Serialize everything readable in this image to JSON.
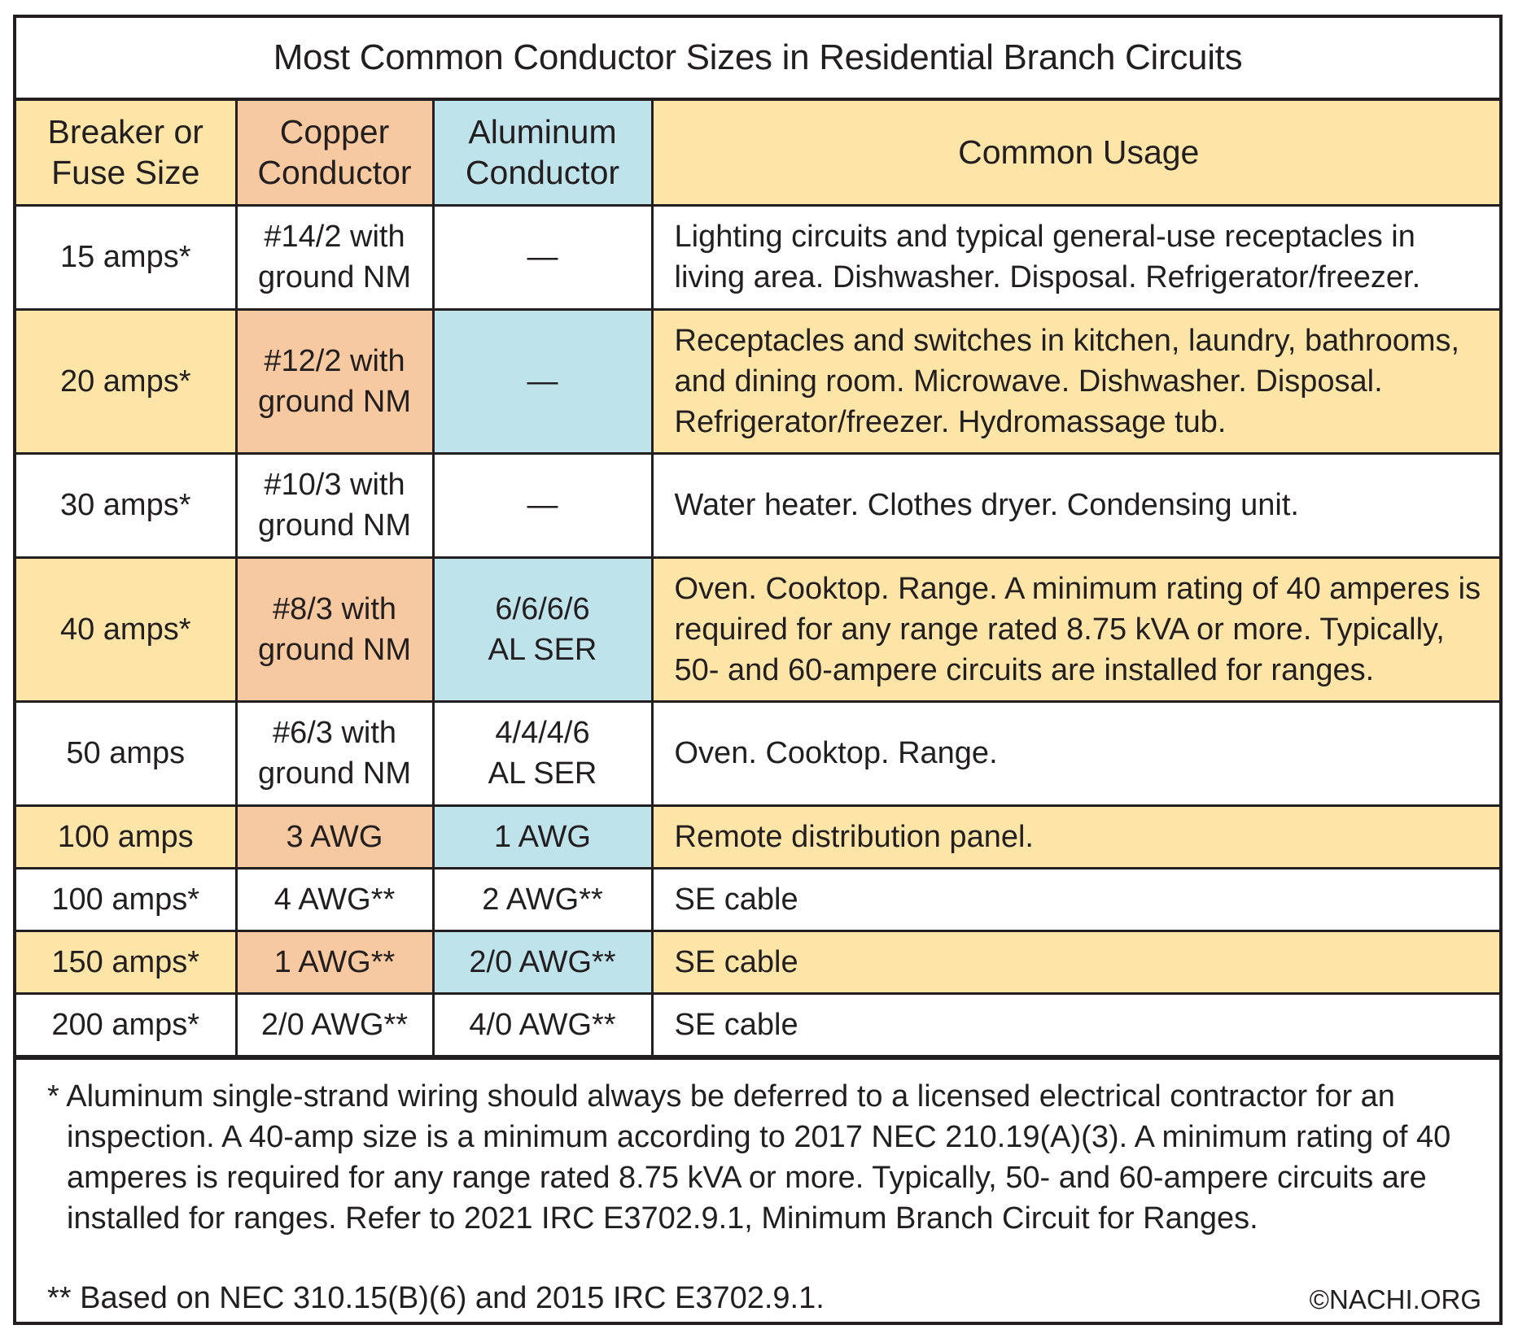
{
  "title": "Most Common Conductor Sizes in Residential Branch Circuits",
  "headers": {
    "breaker_line1": "Breaker or",
    "breaker_line2": "Fuse Size",
    "copper_line1": "Copper",
    "copper_line2": "Conductor",
    "aluminum_line1": "Aluminum",
    "aluminum_line2": "Conductor",
    "usage": "Common Usage"
  },
  "rows": [
    {
      "breaker": "15 amps*",
      "copper1": "#14/2 with",
      "copper2": "ground NM",
      "aluminum1": "—",
      "aluminum2": "",
      "usage1": "Lighting circuits and typical general-use receptacles in",
      "usage2": "living area. Dishwasher. Disposal. Refrigerator/freezer.",
      "usage3": ""
    },
    {
      "breaker": "20 amps*",
      "copper1": "#12/2 with",
      "copper2": "ground NM",
      "aluminum1": "—",
      "aluminum2": "",
      "usage1": "Receptacles and switches in kitchen, laundry, bathrooms,",
      "usage2": "and dining room. Microwave. Dishwasher. Disposal.",
      "usage3": "Refrigerator/freezer. Hydromassage tub."
    },
    {
      "breaker": "30 amps*",
      "copper1": "#10/3 with",
      "copper2": "ground NM",
      "aluminum1": "—",
      "aluminum2": "",
      "usage1": "Water heater. Clothes dryer. Condensing unit.",
      "usage2": "",
      "usage3": ""
    },
    {
      "breaker": "40 amps*",
      "copper1": "#8/3 with",
      "copper2": "ground NM",
      "aluminum1": "6/6/6/6",
      "aluminum2": "AL SER",
      "usage1": "Oven. Cooktop. Range. A minimum rating of 40 amperes is",
      "usage2": "required for any range rated 8.75 kVA or more. Typically,",
      "usage3": "50- and 60-ampere circuits are installed for ranges."
    },
    {
      "breaker": "50 amps",
      "copper1": "#6/3 with",
      "copper2": "ground NM",
      "aluminum1": "4/4/4/6",
      "aluminum2": "AL SER",
      "usage1": "Oven. Cooktop. Range.",
      "usage2": "",
      "usage3": ""
    },
    {
      "breaker": "100 amps",
      "copper1": "3 AWG",
      "copper2": "",
      "aluminum1": "1 AWG",
      "aluminum2": "",
      "usage1": "Remote distribution panel.",
      "usage2": "",
      "usage3": ""
    },
    {
      "breaker": "100 amps*",
      "copper1": "4 AWG**",
      "copper2": "",
      "aluminum1": "2 AWG**",
      "aluminum2": "",
      "usage1": "SE cable",
      "usage2": "",
      "usage3": ""
    },
    {
      "breaker": "150 amps*",
      "copper1": "1 AWG**",
      "copper2": "",
      "aluminum1": "2/0 AWG**",
      "aluminum2": "",
      "usage1": "SE cable",
      "usage2": "",
      "usage3": ""
    },
    {
      "breaker": "200 amps*",
      "copper1": "2/0 AWG**",
      "copper2": "",
      "aluminum1": "4/0 AWG**",
      "aluminum2": "",
      "usage1": "SE cable",
      "usage2": "",
      "usage3": ""
    }
  ],
  "notes": {
    "note1": "* Aluminum single-strand wiring should always be deferred to a licensed electrical contractor for an inspection. A 40-amp size is a minimum according to 2017 NEC 210.19(A)(3). A minimum rating of 40 amperes is required for any range rated 8.75 kVA or more. Typically, 50- and 60-ampere circuits are installed for ranges. Refer to 2021 IRC E3702.9.1, Minimum Branch Circuit for Ranges.",
    "note2": "** Based on NEC 310.15(B)(6) and 2015 IRC E3702.9.1.",
    "copyright": "©NACHI.ORG"
  },
  "colors": {
    "yellow": "#fde5a8",
    "peach": "#f7c9a0",
    "blue": "#bfe3ea",
    "ink": "#231f20"
  }
}
